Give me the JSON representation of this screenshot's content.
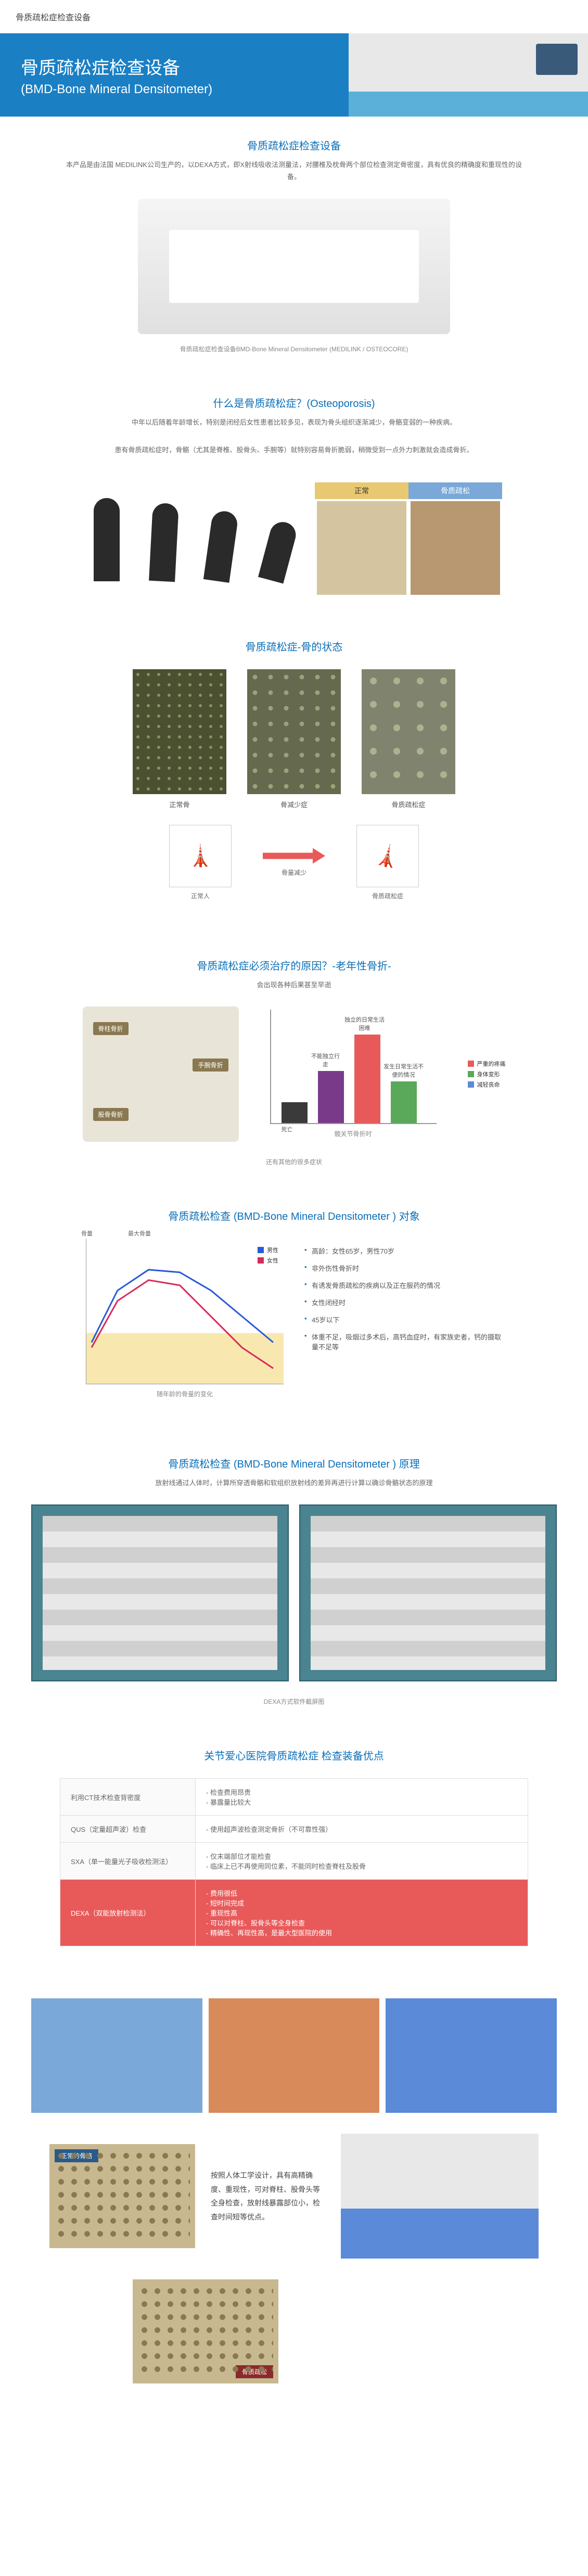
{
  "breadcrumb": "骨质疏松症检查设备",
  "hero": {
    "title": "骨质疏松症检查设备",
    "subtitle": "(BMD-Bone Mineral Densitometer)"
  },
  "intro": {
    "heading": "骨质疏松症检查设备",
    "lead": "本产品是由法国 MEDILINK公司生产的，以DEXA方式，即X射线吸收法测量法，对腰椎及枕骨两个部位检查测定骨密度，具有优良的精确度和重现性的设备。",
    "caption": "骨质疏松症检查设备BMD-Bone Mineral Densitometer (MEDILINK / OSTEOCORE)"
  },
  "what": {
    "heading": "什么是骨质疏松症？(Osteoporosis)",
    "p1": "中年以后随着年龄增长，特别是闭经后女性患者比较多见，表现为骨头组织逐渐减少，骨骼变弱的一种疾病。",
    "p2": "患有骨质疏松症时，骨骼（尤其是脊椎、股骨头、手腕等）就特别容易骨折脆弱，稍微受到一点外力刺激就会造成骨折。",
    "labels": {
      "normal": "正常",
      "osteo": "骨质疏松"
    }
  },
  "state": {
    "heading": "骨质疏松症-骨的状态",
    "l1": "正常骨",
    "l2": "骨减少症",
    "l3": "骨质疏松症",
    "arrow": "骨量减少",
    "t1": "正常人",
    "t2": "骨质疏松症"
  },
  "reason": {
    "heading": "骨质疏松症必须治疗的原因？-老年性骨折-",
    "sub": "会出现各种后果甚至早逝",
    "tag1": "脊柱骨折",
    "tag2": "手腕骨折",
    "tag3": "股骨骨折",
    "foot": "还有其他的很多症状",
    "bar_title": "髋关节骨折时",
    "b1": "死亡",
    "b2": "不能独立行走",
    "b3": "独立的日常生活困难",
    "b4": "发生日常生活不便的情况",
    "leg1": "严重的疼痛",
    "leg2": "身体变形",
    "leg3": "减轻丧命",
    "colors": {
      "b1": "#3a3a3a",
      "b2": "#7a3a8a",
      "b3": "#e85a5a",
      "b4": "#5aa85a"
    }
  },
  "target": {
    "heading": "骨质疏松检查 (BMD-Bone Mineral Densitometer ) 对象",
    "axis_y": "骨量",
    "axis_peak": "最大骨量",
    "leg_m": "男性",
    "leg_f": "女性",
    "caption": "随年龄的骨量的变化",
    "items": [
      "高龄：女性65岁，男性70岁",
      "非外伤性骨折时",
      "有诱发骨质疏松的疾病以及正在服药的情况",
      "女性闭经时",
      "45岁以下",
      "体重不足，吸烟过多术后，高钙血症时，有家族史者，钙的摄取量不足等"
    ]
  },
  "principle": {
    "heading": "骨质疏松检查 (BMD-Bone Mineral Densitometer ) 原理",
    "lead": "放射线通过人体时，计算所穿透骨骼和软组织放射线的差异再进行计算以确诊骨骼状态的原理",
    "caption": "DEXA方式软件截屏图"
  },
  "advantages": {
    "heading": "关节爱心医院骨质疏松症 检查装备优点",
    "rows": [
      {
        "k": "利用CT技术检查背密度",
        "v": [
          "检查费用昂贵",
          "暴露量比较大"
        ]
      },
      {
        "k": "QUS（定量超声波）检查",
        "v": [
          "使用超声波检查测定骨折（不可靠性强）"
        ]
      },
      {
        "k": "SXA（单一能量光子吸收检测法）",
        "v": [
          "仅末端部位才能检查",
          "临床上已不再使用同位素，不能同时检查脊柱及股骨"
        ]
      },
      {
        "k": "DEXA（双能放射检测法）",
        "v": [
          "费用很低",
          "短时间完成",
          "重现性高",
          "可以对脊柱、股骨头等全身检查",
          "精确性、再现性高，是最大型医院的使用"
        ],
        "hl": true
      }
    ]
  },
  "final": {
    "text": "按照人体工学设计，具有高精确度、重现性，可对脊柱、股骨头等全身检查，放射线暴露部位小，检查时间短等优点。",
    "tag_normal": "正常的骨骼",
    "tag_osteo": "骨质疏松"
  }
}
